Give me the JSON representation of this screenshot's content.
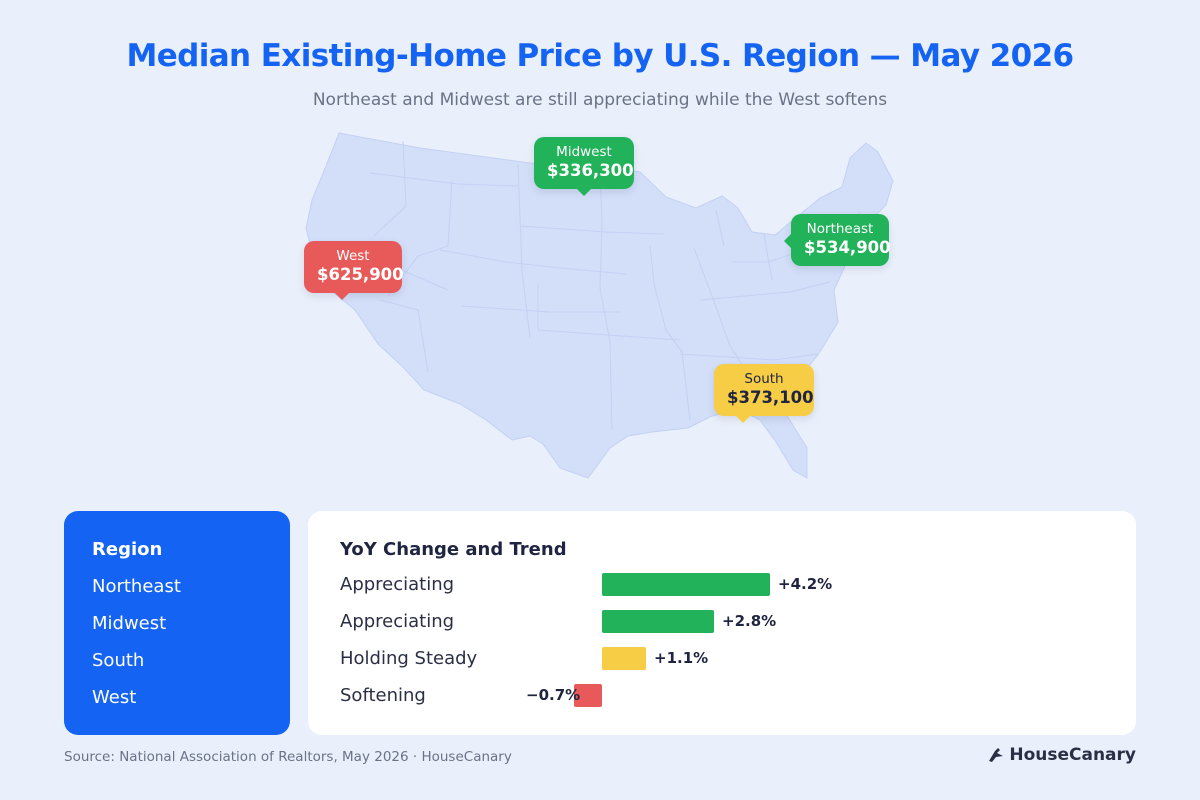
{
  "header": {
    "title": "Median Existing-Home Price by U.S. Region — May 2026",
    "subtitle": "Northeast and Midwest are still appreciating while the West softens"
  },
  "colors": {
    "title": "#1463f3",
    "appreciating": "#21b25a",
    "holding": "#f6cd45",
    "softening": "#e85a5a",
    "map_fill": "#d3def8",
    "background": "#e9f0fb"
  },
  "map_callouts": {
    "west": {
      "name": "West",
      "price": "$625,900"
    },
    "midwest": {
      "name": "Midwest",
      "price": "$336,300"
    },
    "northeast": {
      "name": "Northeast",
      "price": "$534,900"
    },
    "south": {
      "name": "South",
      "price": "$373,100"
    }
  },
  "region_table": {
    "header": "Region",
    "items": [
      "Northeast",
      "Midwest",
      "South",
      "West"
    ]
  },
  "trend_table": {
    "header": "YoY Change and Trend"
  },
  "chart_data": {
    "type": "bar",
    "orientation": "horizontal",
    "categories": [
      "Northeast",
      "Midwest",
      "South",
      "West"
    ],
    "series": [
      {
        "values": [
          4.2,
          2.8,
          1.1,
          -0.7
        ]
      }
    ],
    "trend_labels": [
      "Appreciating",
      "Appreciating",
      "Holding Steady",
      "Softening"
    ],
    "value_labels": [
      "+4.2%",
      "+2.8%",
      "+1.1%",
      "−0.7%"
    ],
    "bar_colors": [
      "#21b25a",
      "#21b25a",
      "#f6cd45",
      "#e85a5a"
    ],
    "unit": "%",
    "grid": false
  },
  "footer": {
    "source": "Source: National Association of Realtors, May 2026 · HouseCanary",
    "brand": "HouseCanary"
  }
}
